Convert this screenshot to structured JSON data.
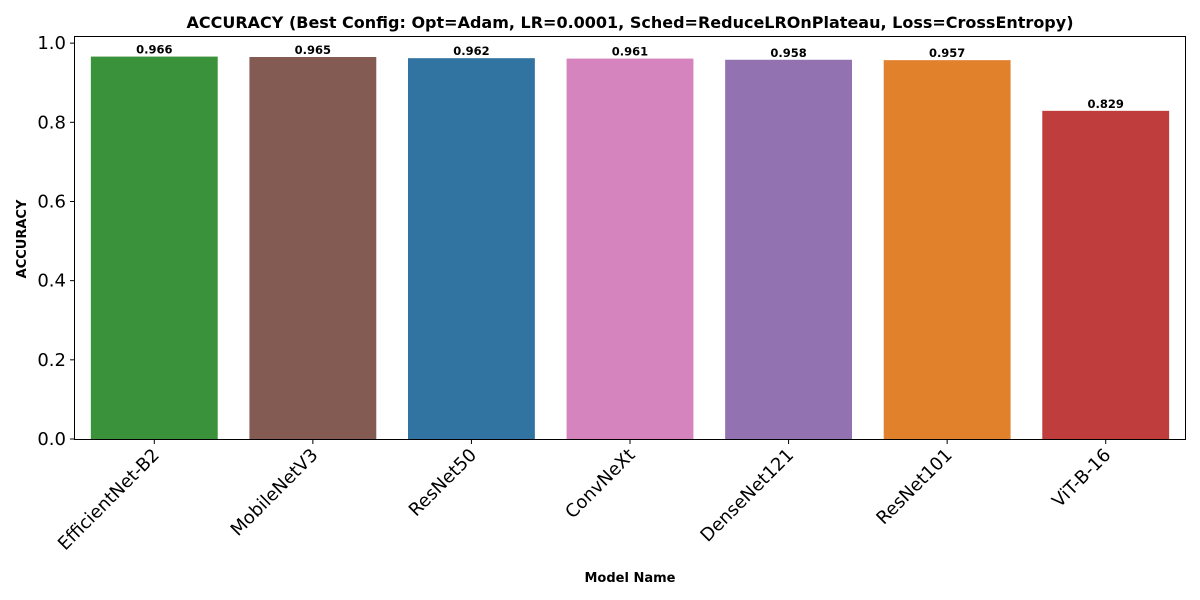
{
  "chart_data": {
    "type": "bar",
    "title": "ACCURACY (Best Config: Opt=Adam, LR=0.0001, Sched=ReduceLROnPlateau, Loss=CrossEntropy)",
    "xlabel": "Model Name",
    "ylabel": "ACCURACY",
    "ylim": [
      0,
      1.0
    ],
    "yticks": [
      "0.0",
      "0.2",
      "0.4",
      "0.6",
      "0.8",
      "1.0"
    ],
    "ytick_values": [
      0,
      0.2,
      0.4,
      0.6,
      0.8,
      1.0
    ],
    "grid": false,
    "categories": [
      "EfficientNet-B2",
      "MobileNetV3",
      "ResNet50",
      "ConvNeXt",
      "DenseNet121",
      "ResNet101",
      "ViT-B-16"
    ],
    "values": [
      0.966,
      0.965,
      0.962,
      0.961,
      0.958,
      0.957,
      0.829
    ],
    "value_labels": [
      "0.966",
      "0.965",
      "0.962",
      "0.961",
      "0.958",
      "0.957",
      "0.829"
    ],
    "colors": [
      "#3a923a",
      "#845b53",
      "#3274a1",
      "#d684bd",
      "#9372b2",
      "#e1812c",
      "#c03d3e"
    ]
  }
}
